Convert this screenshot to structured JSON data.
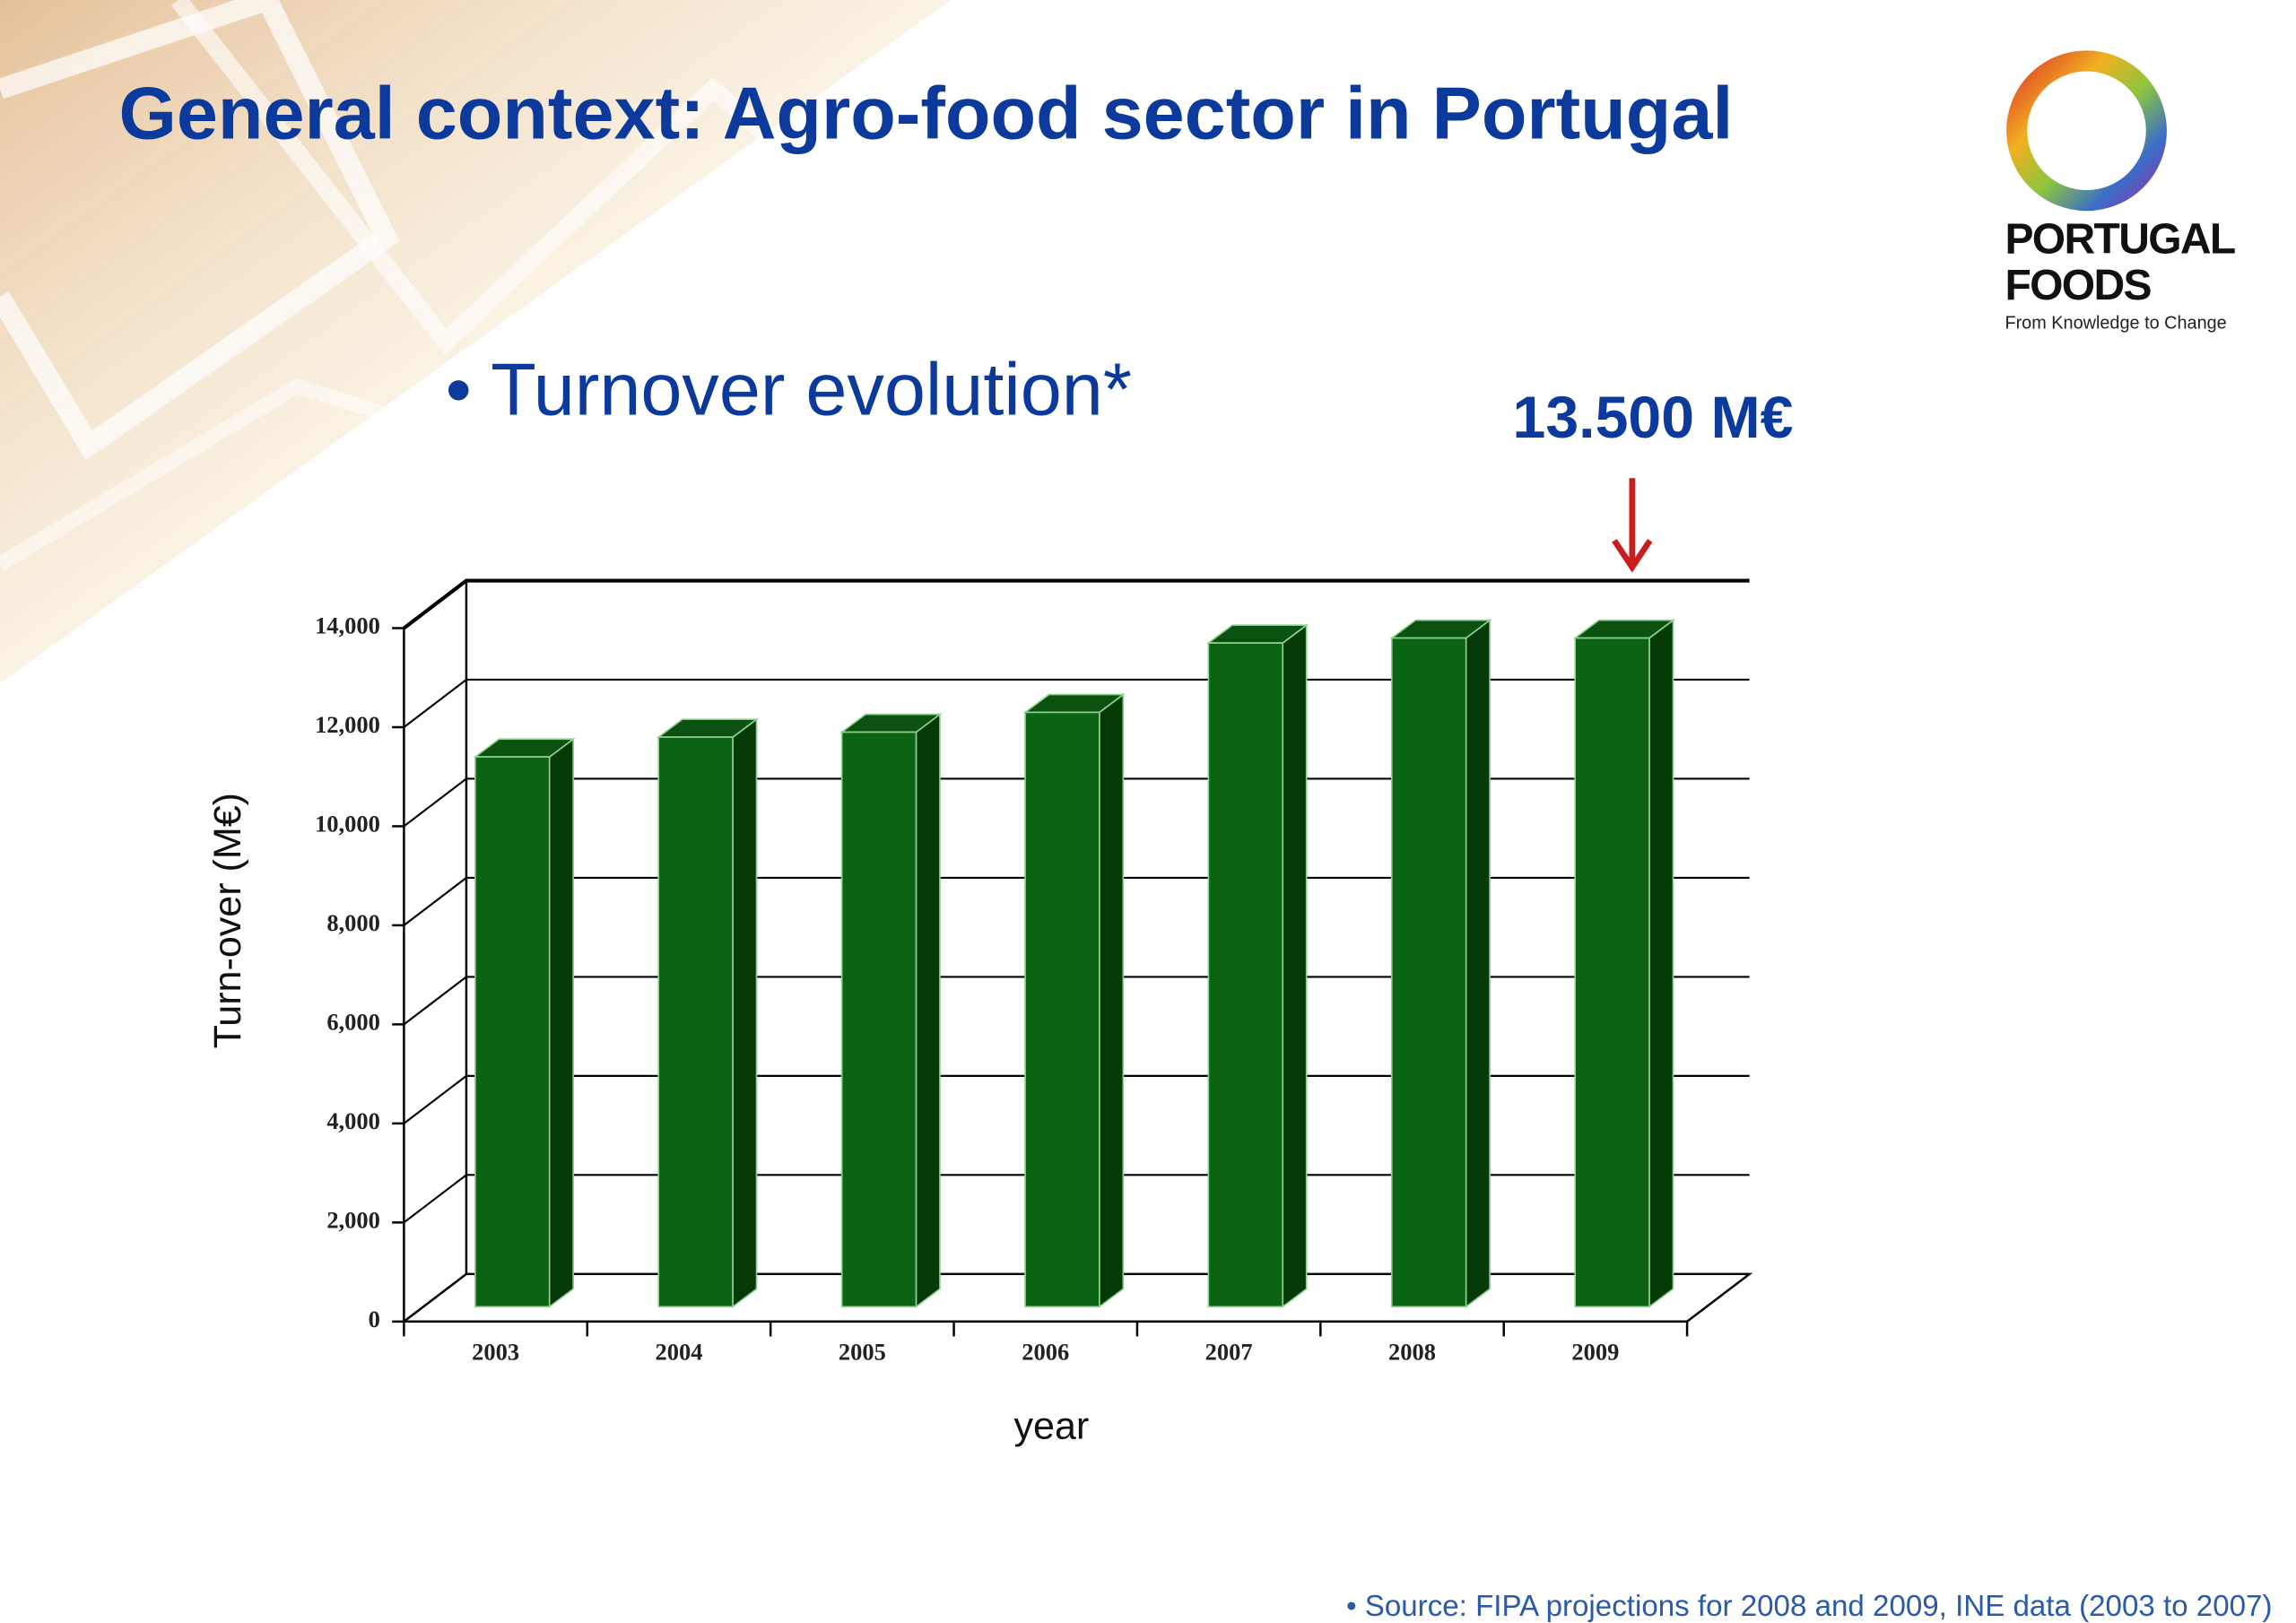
{
  "slide": {
    "title": "General context: Agro-food sector in Portugal",
    "bullet": "• Turnover evolution*",
    "annotation": "13.500 M€",
    "source": "• Source: FIPA projections for 2008 and 2009, INE data (2003 to 2007)"
  },
  "logo": {
    "name_line1": "PORTUGAL",
    "name_line2": "FOODS",
    "tagline": "From Knowledge to Change"
  },
  "chart_data": {
    "type": "bar3d",
    "x_label": "year",
    "y_label": "Turn-over (M€)",
    "categories": [
      "2003",
      "2004",
      "2005",
      "2006",
      "2007",
      "2008",
      "2009"
    ],
    "values": [
      11100,
      11500,
      11600,
      12000,
      13400,
      13500,
      13500
    ],
    "color": "#0a6414",
    "ylim": [
      0,
      14000
    ],
    "yticks": [
      0,
      {
        "value": 2000,
        "label": "2,000"
      },
      {
        "value": 4000,
        "label": "4,000"
      },
      {
        "value": 6000,
        "label": "6,000"
      },
      {
        "value": 8000,
        "label": "8,000"
      },
      {
        "value": 10000,
        "label": "10,000"
      },
      {
        "value": 12000,
        "label": "12,000"
      },
      {
        "value": 14000,
        "label": "14,000"
      }
    ],
    "grid": true
  }
}
